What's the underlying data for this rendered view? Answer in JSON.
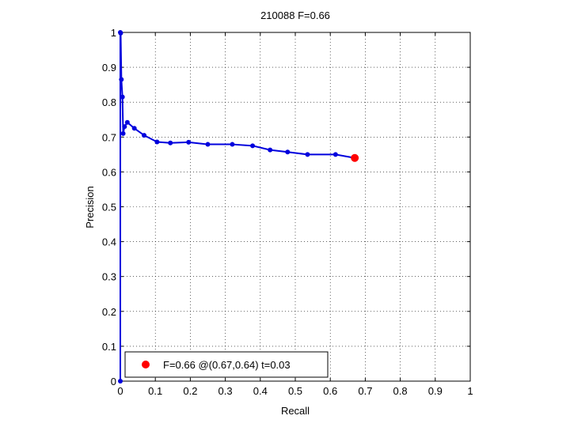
{
  "chart_data": {
    "type": "line",
    "title": "210088 F=0.66",
    "xlabel": "Recall",
    "ylabel": "Precision",
    "xlim": [
      0,
      1
    ],
    "ylim": [
      0,
      1
    ],
    "xticks": [
      0,
      0.1,
      0.2,
      0.3,
      0.4,
      0.5,
      0.6,
      0.7,
      0.8,
      0.9,
      1
    ],
    "yticks": [
      0,
      0.1,
      0.2,
      0.3,
      0.4,
      0.5,
      0.6,
      0.7,
      0.8,
      0.9,
      1
    ],
    "xtick_labels": [
      "0",
      "0.1",
      "0.2",
      "0.3",
      "0.4",
      "0.5",
      "0.6",
      "0.7",
      "0.8",
      "0.9",
      "1"
    ],
    "ytick_labels": [
      "0",
      "0.1",
      "0.2",
      "0.3",
      "0.4",
      "0.5",
      "0.6",
      "0.7",
      "0.8",
      "0.9",
      "1"
    ],
    "grid": true,
    "legend_position": "bottom-left",
    "colors": {
      "series": "#0000dd",
      "highlight": "#ff0000"
    },
    "series": [
      {
        "x": [
          0,
          0.001,
          0.003,
          0.006,
          0.008,
          0.012,
          0.02,
          0.04,
          0.068,
          0.105,
          0.143,
          0.195,
          0.25,
          0.32,
          0.378,
          0.428,
          0.478,
          0.535,
          0.615,
          0.67
        ],
        "y": [
          1,
          0.998,
          0.865,
          0.815,
          0.71,
          0.73,
          0.742,
          0.725,
          0.705,
          0.686,
          0.683,
          0.685,
          0.679,
          0.679,
          0.675,
          0.663,
          0.657,
          0.65,
          0.65,
          0.64
        ]
      }
    ],
    "extra_points": [
      {
        "x": 0,
        "y": 0
      }
    ],
    "highlight": {
      "x": 0.67,
      "y": 0.64
    },
    "legend": {
      "label": "F=0.66 @(0.67,0.64) t=0.03"
    }
  }
}
